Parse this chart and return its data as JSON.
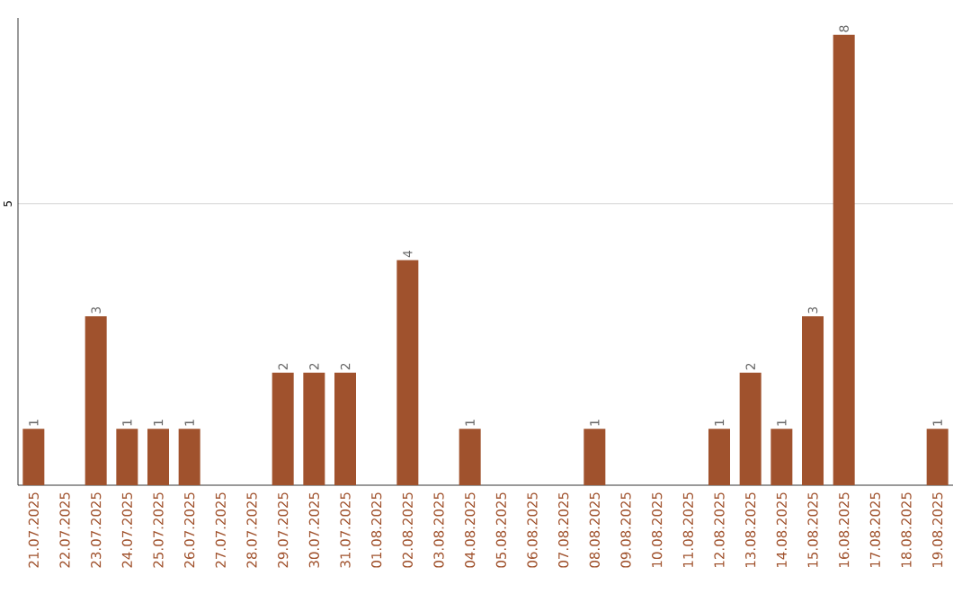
{
  "chart_data": {
    "type": "bar",
    "categories": [
      "21.07.2025",
      "22.07.2025",
      "23.07.2025",
      "24.07.2025",
      "25.07.2025",
      "26.07.2025",
      "27.07.2025",
      "28.07.2025",
      "29.07.2025",
      "30.07.2025",
      "31.07.2025",
      "01.08.2025",
      "02.08.2025",
      "03.08.2025",
      "04.08.2025",
      "05.08.2025",
      "06.08.2025",
      "07.08.2025",
      "08.08.2025",
      "09.08.2025",
      "10.08.2025",
      "11.08.2025",
      "12.08.2025",
      "13.08.2025",
      "14.08.2025",
      "15.08.2025",
      "16.08.2025",
      "17.08.2025",
      "18.08.2025",
      "19.08.2025"
    ],
    "values": [
      1,
      0,
      3,
      1,
      1,
      1,
      0,
      0,
      2,
      2,
      2,
      0,
      4,
      0,
      1,
      0,
      0,
      0,
      1,
      0,
      0,
      0,
      1,
      2,
      1,
      3,
      8,
      0,
      0,
      1
    ],
    "value_labels": [
      "1",
      null,
      "3",
      "1",
      "1",
      "1",
      null,
      null,
      "2",
      "2",
      "2",
      null,
      "4",
      null,
      "1",
      null,
      null,
      null,
      "1",
      null,
      null,
      null,
      "1",
      "2",
      "1",
      "3",
      "8",
      null,
      null,
      "1"
    ],
    "color": "#a0522d",
    "ylim": [
      0,
      8.3
    ],
    "yticks": [
      5
    ],
    "grid": "y"
  }
}
